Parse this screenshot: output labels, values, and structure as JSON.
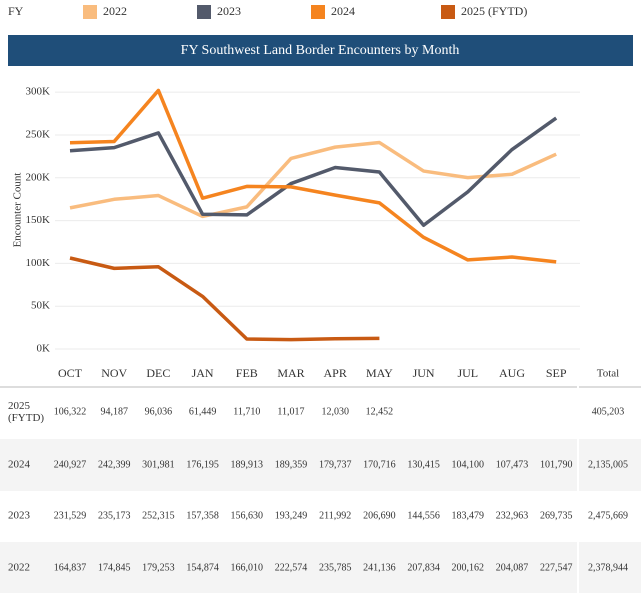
{
  "chart_data": {
    "type": "line",
    "title": "FY Southwest Land Border Encounters by Month",
    "legend_title": "FY",
    "y_label": "Encounter Count",
    "total_header": "Total",
    "categories": [
      "OCT",
      "NOV",
      "DEC",
      "JAN",
      "FEB",
      "MAR",
      "APR",
      "MAY",
      "JUN",
      "JUL",
      "AUG",
      "SEP"
    ],
    "ylim": [
      -10000,
      320000
    ],
    "yticks": [
      {
        "value": 0,
        "label": "0K"
      },
      {
        "value": 50000,
        "label": "50K"
      },
      {
        "value": 100000,
        "label": "100K"
      },
      {
        "value": 150000,
        "label": "150K"
      },
      {
        "value": 200000,
        "label": "200K"
      },
      {
        "value": 250000,
        "label": "250K"
      },
      {
        "value": 300000,
        "label": "300K"
      }
    ],
    "grid": true,
    "series": [
      {
        "name": "2022",
        "color": "#f9bc7e",
        "values": [
          164837,
          174845,
          179253,
          154874,
          166010,
          222574,
          235785,
          241136,
          207834,
          200162,
          204087,
          227547
        ],
        "value_labels": [
          "164,837",
          "174,845",
          "179,253",
          "154,874",
          "166,010",
          "222,574",
          "235,785",
          "241,136",
          "207,834",
          "200,162",
          "204,087",
          "227,547"
        ],
        "total": "2,378,944"
      },
      {
        "name": "2023",
        "color": "#535a6b",
        "values": [
          231529,
          235173,
          252315,
          157358,
          156630,
          193249,
          211992,
          206690,
          144556,
          183479,
          232963,
          269735
        ],
        "value_labels": [
          "231,529",
          "235,173",
          "252,315",
          "157,358",
          "156,630",
          "193,249",
          "211,992",
          "206,690",
          "144,556",
          "183,479",
          "232,963",
          "269,735"
        ],
        "total": "2,475,669"
      },
      {
        "name": "2024",
        "color": "#f5841f",
        "values": [
          240927,
          242399,
          301981,
          176195,
          189913,
          189359,
          179737,
          170716,
          130415,
          104100,
          107473,
          101790
        ],
        "value_labels": [
          "240,927",
          "242,399",
          "301,981",
          "176,195",
          "189,913",
          "189,359",
          "179,737",
          "170,716",
          "130,415",
          "104,100",
          "107,473",
          "101,790"
        ],
        "total": "2,135,005"
      },
      {
        "name": "2025 (FYTD)",
        "color": "#c85a13",
        "values": [
          106322,
          94187,
          96036,
          61449,
          11710,
          11017,
          12030,
          12452,
          null,
          null,
          null,
          null
        ],
        "value_labels": [
          "106,322",
          "94,187",
          "96,036",
          "61,449",
          "11,710",
          "11,017",
          "12,030",
          "12,452",
          null,
          null,
          null,
          null
        ],
        "total": "405,203"
      }
    ]
  }
}
